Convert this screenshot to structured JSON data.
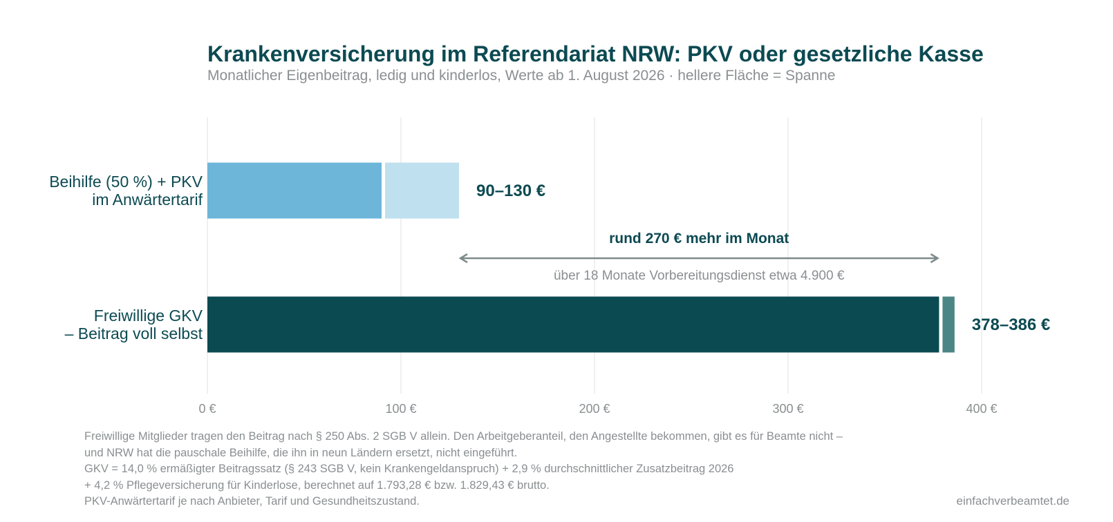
{
  "title": "Krankenversicherung im Referendariat NRW: PKV oder gesetzliche Kasse",
  "subtitle": "Monatlicher Eigenbeitrag, ledig und kinderlos, Werte ab 1. August 2026 · hellere Fläche = Spanne",
  "chart_data": {
    "type": "bar",
    "orientation": "horizontal",
    "x_unit": "€",
    "xlim": [
      0,
      440
    ],
    "x_ticks": [
      0,
      100,
      200,
      300,
      400
    ],
    "x_tick_labels": [
      "0 €",
      "100 €",
      "200 €",
      "300 €",
      "400 €"
    ],
    "grid": true,
    "categories": [
      {
        "label_lines": [
          "Beihilfe (50 %) + PKV",
          "im Anwärtertarif"
        ],
        "min": 90,
        "max": 130,
        "value_label": "90–130 €",
        "color": "#6db6d9",
        "range_color": "#bfe0ee"
      },
      {
        "label_lines": [
          "Freiwillige GKV",
          "– Beitrag voll selbst"
        ],
        "min": 378,
        "max": 386,
        "value_label": "378–386 €",
        "color": "#0c4a52",
        "range_color": "#4c8585"
      }
    ],
    "annotation": {
      "from": 130,
      "to": 378,
      "label": "rund 270 € mehr im Monat",
      "sublabel": "über 18 Monate Vorbereitungsdienst etwa 4.900 €"
    }
  },
  "footnote": [
    "Freiwillige Mitglieder tragen den Beitrag nach § 250 Abs. 2 SGB V allein. Den Arbeitgeberanteil, den Angestellte bekommen, gibt es für Beamte nicht –",
    "und NRW hat die pauschale Beihilfe, die ihn in neun Ländern ersetzt, nicht eingeführt.",
    "GKV = 14,0 % ermäßigter Beitragssatz (§ 243 SGB V, kein Krankengeldanspruch) + 2,9 % durchschnittlicher Zusatzbeitrag 2026",
    "+ 4,2 % Pflegeversicherung für Kinderlose, berechnet auf 1.793,28 € bzw. 1.829,43 € brutto.",
    "PKV-Anwärtertarif je nach Anbieter, Tarif und Gesundheitszustand."
  ],
  "source": "einfachverbeamtet.de"
}
